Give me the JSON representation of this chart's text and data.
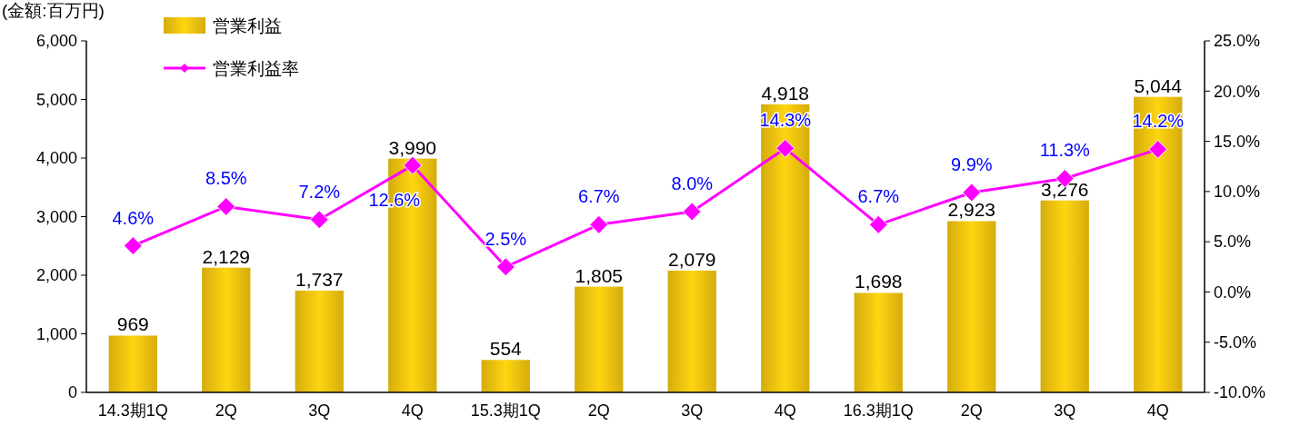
{
  "chart_data": {
    "type": "bar",
    "ylabel": "(金額:百万円)",
    "categories": [
      "14.3期1Q",
      "2Q",
      "3Q",
      "4Q",
      "15.3期1Q",
      "2Q",
      "3Q",
      "4Q",
      "16.3期1Q",
      "2Q",
      "3Q",
      "4Q"
    ],
    "series": [
      {
        "name": "営業利益",
        "color": "#d4ac0d",
        "values": [
          969,
          2129,
          1737,
          3990,
          554,
          1805,
          2079,
          4918,
          1698,
          2923,
          3276,
          5044
        ],
        "value_labels": [
          "969",
          "2,129",
          "1,737",
          "3,990",
          "554",
          "1,805",
          "2,079",
          "4,918",
          "1,698",
          "2,923",
          "3,276",
          "5,044"
        ]
      },
      {
        "name": "営業利益率",
        "type": "line",
        "axis": "y2",
        "color": "#ff00ff",
        "values": [
          4.6,
          8.5,
          7.2,
          12.6,
          2.5,
          6.7,
          8.0,
          14.3,
          6.7,
          9.9,
          11.3,
          14.2
        ],
        "value_labels": [
          "4.6%",
          "8.5%",
          "7.2%",
          "12.6%",
          "2.5%",
          "6.7%",
          "8.0%",
          "14.3%",
          "6.7%",
          "9.9%",
          "11.3%",
          "14.2%"
        ]
      }
    ],
    "ylim": [
      0,
      6000
    ],
    "yticks": [
      {
        "value": 0,
        "label": "0"
      },
      {
        "value": 1000,
        "label": "1,000"
      },
      {
        "value": 2000,
        "label": "2,000"
      },
      {
        "value": 3000,
        "label": "3,000"
      },
      {
        "value": 4000,
        "label": "4,000"
      },
      {
        "value": 5000,
        "label": "5,000"
      },
      {
        "value": 6000,
        "label": "6,000"
      }
    ],
    "y2lim": [
      -10,
      25
    ],
    "y2ticks": [
      {
        "value": -10,
        "label": "-10.0%"
      },
      {
        "value": -5,
        "label": "-5.0%"
      },
      {
        "value": 0,
        "label": "0.0%"
      },
      {
        "value": 5,
        "label": "5.0%"
      },
      {
        "value": 10,
        "label": "10.0%"
      },
      {
        "value": 15,
        "label": "15.0%"
      },
      {
        "value": 20,
        "label": "20.0%"
      },
      {
        "value": 25,
        "label": "25.0%"
      }
    ],
    "legend": "top left",
    "marker": "diamond",
    "grid": false
  }
}
